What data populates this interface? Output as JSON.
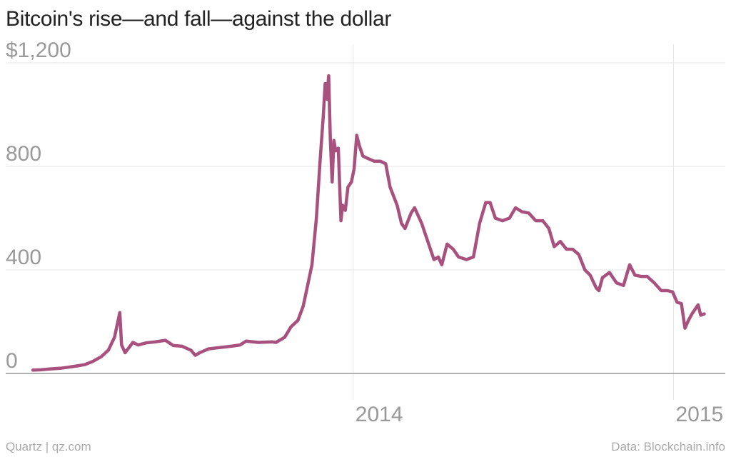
{
  "header": {
    "title": "Bitcoin's rise—and fall—against the dollar"
  },
  "footer": {
    "source_left": "Quartz | qz.com",
    "source_right": "Data: Blockchain.info"
  },
  "colors": {
    "line": "#a8517f",
    "grid": "#e6e6e6",
    "axis": "#999999",
    "tick_text": "#999999"
  },
  "chart_data": {
    "type": "line",
    "title": "Bitcoin's rise—and fall—against the dollar",
    "xlabel": "",
    "ylabel": "",
    "ylim": [
      0,
      1200
    ],
    "xlim": [
      "2012-12-01",
      "2015-03-01"
    ],
    "y_ticks": [
      0,
      400,
      800,
      1200
    ],
    "y_tick_labels": [
      "0",
      "400",
      "800",
      "$1,200"
    ],
    "x_ticks": [
      "2014-01-01",
      "2015-01-01"
    ],
    "x_tick_labels": [
      "2014",
      "2015"
    ],
    "grid": true,
    "series": [
      {
        "points": [
          [
            "2013-01-01",
            13
          ],
          [
            "2013-01-10",
            14
          ],
          [
            "2013-01-20",
            17
          ],
          [
            "2013-02-01",
            20
          ],
          [
            "2013-02-10",
            24
          ],
          [
            "2013-02-20",
            29
          ],
          [
            "2013-03-01",
            34
          ],
          [
            "2013-03-10",
            46
          ],
          [
            "2013-03-20",
            65
          ],
          [
            "2013-03-28",
            90
          ],
          [
            "2013-04-04",
            140
          ],
          [
            "2013-04-10",
            235
          ],
          [
            "2013-04-12",
            110
          ],
          [
            "2013-04-16",
            80
          ],
          [
            "2013-04-25",
            120
          ],
          [
            "2013-05-01",
            110
          ],
          [
            "2013-05-10",
            118
          ],
          [
            "2013-05-20",
            122
          ],
          [
            "2013-06-01",
            128
          ],
          [
            "2013-06-10",
            108
          ],
          [
            "2013-06-20",
            105
          ],
          [
            "2013-06-30",
            90
          ],
          [
            "2013-07-05",
            70
          ],
          [
            "2013-07-10",
            80
          ],
          [
            "2013-07-20",
            95
          ],
          [
            "2013-08-01",
            100
          ],
          [
            "2013-08-15",
            105
          ],
          [
            "2013-08-25",
            110
          ],
          [
            "2013-09-01",
            125
          ],
          [
            "2013-09-15",
            120
          ],
          [
            "2013-10-01",
            122
          ],
          [
            "2013-10-05",
            120
          ],
          [
            "2013-10-15",
            140
          ],
          [
            "2013-10-22",
            180
          ],
          [
            "2013-10-30",
            205
          ],
          [
            "2013-11-05",
            260
          ],
          [
            "2013-11-10",
            340
          ],
          [
            "2013-11-15",
            420
          ],
          [
            "2013-11-20",
            600
          ],
          [
            "2013-11-24",
            810
          ],
          [
            "2013-11-28",
            1000
          ],
          [
            "2013-11-30",
            1120
          ],
          [
            "2013-12-02",
            1060
          ],
          [
            "2013-12-04",
            1150
          ],
          [
            "2013-12-06",
            900
          ],
          [
            "2013-12-08",
            740
          ],
          [
            "2013-12-10",
            900
          ],
          [
            "2013-12-12",
            860
          ],
          [
            "2013-12-15",
            870
          ],
          [
            "2013-12-18",
            590
          ],
          [
            "2013-12-20",
            650
          ],
          [
            "2013-12-23",
            630
          ],
          [
            "2013-12-26",
            720
          ],
          [
            "2013-12-30",
            740
          ],
          [
            "2014-01-02",
            790
          ],
          [
            "2014-01-05",
            920
          ],
          [
            "2014-01-08",
            880
          ],
          [
            "2014-01-12",
            840
          ],
          [
            "2014-01-18",
            830
          ],
          [
            "2014-01-25",
            820
          ],
          [
            "2014-02-01",
            820
          ],
          [
            "2014-02-07",
            810
          ],
          [
            "2014-02-12",
            720
          ],
          [
            "2014-02-20",
            650
          ],
          [
            "2014-02-25",
            580
          ],
          [
            "2014-03-01",
            560
          ],
          [
            "2014-03-08",
            620
          ],
          [
            "2014-03-12",
            640
          ],
          [
            "2014-03-20",
            580
          ],
          [
            "2014-03-28",
            500
          ],
          [
            "2014-04-03",
            440
          ],
          [
            "2014-04-08",
            450
          ],
          [
            "2014-04-12",
            420
          ],
          [
            "2014-04-18",
            500
          ],
          [
            "2014-04-25",
            480
          ],
          [
            "2014-05-01",
            450
          ],
          [
            "2014-05-10",
            440
          ],
          [
            "2014-05-18",
            450
          ],
          [
            "2014-05-25",
            580
          ],
          [
            "2014-06-01",
            660
          ],
          [
            "2014-06-06",
            660
          ],
          [
            "2014-06-12",
            600
          ],
          [
            "2014-06-20",
            590
          ],
          [
            "2014-06-28",
            600
          ],
          [
            "2014-07-05",
            640
          ],
          [
            "2014-07-12",
            625
          ],
          [
            "2014-07-20",
            620
          ],
          [
            "2014-07-28",
            590
          ],
          [
            "2014-08-05",
            590
          ],
          [
            "2014-08-12",
            560
          ],
          [
            "2014-08-18",
            490
          ],
          [
            "2014-08-25",
            510
          ],
          [
            "2014-09-01",
            480
          ],
          [
            "2014-09-08",
            480
          ],
          [
            "2014-09-15",
            460
          ],
          [
            "2014-09-22",
            400
          ],
          [
            "2014-09-28",
            380
          ],
          [
            "2014-10-05",
            330
          ],
          [
            "2014-10-08",
            320
          ],
          [
            "2014-10-12",
            370
          ],
          [
            "2014-10-20",
            390
          ],
          [
            "2014-10-28",
            350
          ],
          [
            "2014-11-05",
            340
          ],
          [
            "2014-11-12",
            420
          ],
          [
            "2014-11-18",
            380
          ],
          [
            "2014-11-25",
            375
          ],
          [
            "2014-12-02",
            375
          ],
          [
            "2014-12-10",
            350
          ],
          [
            "2014-12-18",
            320
          ],
          [
            "2014-12-25",
            320
          ],
          [
            "2014-12-31",
            315
          ],
          [
            "2015-01-05",
            275
          ],
          [
            "2015-01-10",
            270
          ],
          [
            "2015-01-14",
            175
          ],
          [
            "2015-01-18",
            205
          ],
          [
            "2015-01-22",
            230
          ],
          [
            "2015-01-26",
            250
          ],
          [
            "2015-01-29",
            265
          ],
          [
            "2015-02-01",
            225
          ],
          [
            "2015-02-05",
            230
          ]
        ]
      }
    ]
  }
}
